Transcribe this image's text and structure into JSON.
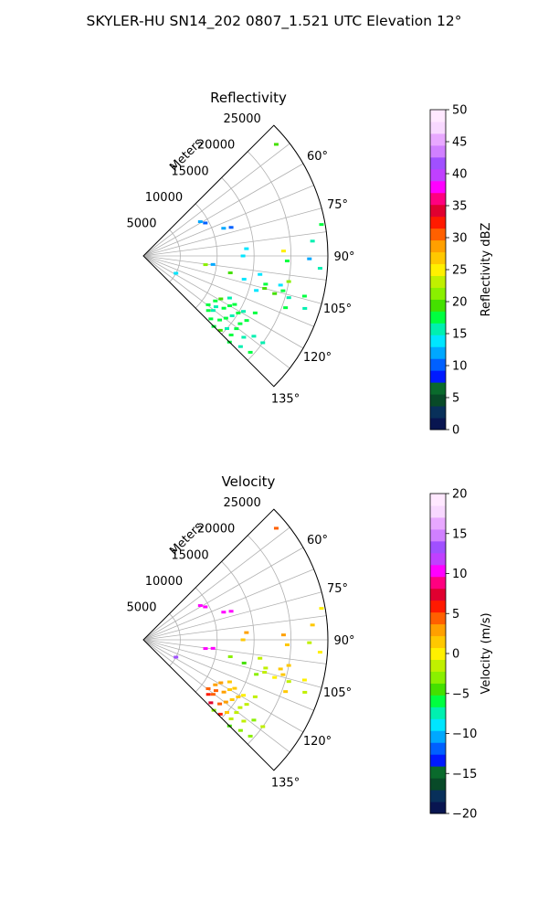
{
  "figure": {
    "title": "SKYLER-HU  SN14_202  0807_1.521 UTC Elevation 12°"
  },
  "chart_data": [
    {
      "type": "polar-scatter",
      "title": "Reflectivity",
      "radial_label": "Meters",
      "radial_ticks": [
        5000,
        10000,
        15000,
        20000,
        25000
      ],
      "radial_tick_labels": [
        "5000",
        "10000",
        "15000",
        "20000",
        "25000"
      ],
      "rlim": [
        0,
        25000
      ],
      "theta_ticks": [
        60,
        75,
        90,
        105,
        120,
        135
      ],
      "theta_tick_labels": [
        "60°",
        "75°",
        "90°",
        "105°",
        "120°",
        "135°"
      ],
      "theta_range": [
        45,
        135
      ],
      "grid": true,
      "colorbar": {
        "label": "Reflectivity dBZ",
        "range": [
          0,
          50
        ],
        "ticks": [
          0,
          5,
          10,
          15,
          20,
          25,
          30,
          35,
          40,
          45,
          50
        ],
        "tick_labels": [
          "0",
          "5",
          "10",
          "15",
          "20",
          "25",
          "30",
          "35",
          "40",
          "45",
          "50"
        ]
      },
      "points": [
        {
          "az": 50,
          "r": 23500,
          "v": 20
        },
        {
          "az": 59,
          "r": 9000,
          "v": 12
        },
        {
          "az": 62,
          "r": 9500,
          "v": 11
        },
        {
          "az": 71,
          "r": 11500,
          "v": 12
        },
        {
          "az": 72,
          "r": 12500,
          "v": 11
        },
        {
          "az": 86,
          "r": 14000,
          "v": 14
        },
        {
          "az": 90,
          "r": 13500,
          "v": 14
        },
        {
          "az": 88,
          "r": 19000,
          "v": 25
        },
        {
          "az": 92,
          "r": 19500,
          "v": 17
        },
        {
          "az": 80,
          "r": 24500,
          "v": 18
        },
        {
          "az": 85,
          "r": 23000,
          "v": 15
        },
        {
          "az": 91,
          "r": 22500,
          "v": 12
        },
        {
          "az": 94,
          "r": 24000,
          "v": 15
        },
        {
          "az": 98,
          "r": 8500,
          "v": 22
        },
        {
          "az": 97,
          "r": 9500,
          "v": 12
        },
        {
          "az": 101,
          "r": 12000,
          "v": 20
        },
        {
          "az": 103,
          "r": 14000,
          "v": 14
        },
        {
          "az": 99,
          "r": 16000,
          "v": 13
        },
        {
          "az": 103,
          "r": 17000,
          "v": 17
        },
        {
          "az": 100,
          "r": 20000,
          "v": 22
        },
        {
          "az": 102,
          "r": 19000,
          "v": 13
        },
        {
          "az": 105,
          "r": 17000,
          "v": 20
        },
        {
          "az": 104,
          "r": 19500,
          "v": 17
        },
        {
          "az": 106,
          "r": 18500,
          "v": 19
        },
        {
          "az": 106,
          "r": 20500,
          "v": 16
        },
        {
          "az": 104,
          "r": 22500,
          "v": 18
        },
        {
          "az": 107,
          "r": 16000,
          "v": 14
        },
        {
          "az": 108,
          "r": 23000,
          "v": 16
        },
        {
          "az": 110,
          "r": 20500,
          "v": 18
        },
        {
          "az": 118,
          "r": 5000,
          "v": 13
        },
        {
          "az": 118,
          "r": 14000,
          "v": 18
        },
        {
          "az": 119,
          "r": 15500,
          "v": 16
        },
        {
          "az": 117,
          "r": 17000,
          "v": 17
        },
        {
          "az": 116,
          "r": 13000,
          "v": 15
        },
        {
          "az": 120,
          "r": 13500,
          "v": 17
        },
        {
          "az": 121,
          "r": 15000,
          "v": 18
        },
        {
          "az": 119,
          "r": 12000,
          "v": 19
        },
        {
          "az": 122,
          "r": 16500,
          "v": 17
        },
        {
          "az": 124,
          "r": 14500,
          "v": 16
        },
        {
          "az": 123,
          "r": 13000,
          "v": 17
        },
        {
          "az": 125,
          "r": 16000,
          "v": 18
        },
        {
          "az": 126,
          "r": 18500,
          "v": 15
        },
        {
          "az": 127,
          "r": 14000,
          "v": 17
        },
        {
          "az": 128,
          "r": 12000,
          "v": 16
        },
        {
          "az": 128,
          "r": 16000,
          "v": 18
        },
        {
          "az": 130,
          "r": 13500,
          "v": 17
        },
        {
          "az": 131,
          "r": 15000,
          "v": 16
        },
        {
          "az": 133,
          "r": 12500,
          "v": 18
        },
        {
          "az": 132,
          "r": 16000,
          "v": 17
        },
        {
          "az": 134,
          "r": 14500,
          "v": 19
        },
        {
          "az": 133,
          "r": 18000,
          "v": 16
        },
        {
          "az": 130,
          "r": 11500,
          "v": 17
        },
        {
          "az": 127,
          "r": 11000,
          "v": 18
        },
        {
          "az": 125,
          "r": 12000,
          "v": 16
        },
        {
          "az": 122,
          "r": 11500,
          "v": 17
        },
        {
          "az": 129,
          "r": 17500,
          "v": 15
        },
        {
          "az": 126,
          "r": 20000,
          "v": 16
        },
        {
          "az": 132,
          "r": 19500,
          "v": 17
        },
        {
          "az": 135,
          "r": 16500,
          "v": 18
        },
        {
          "az": 135,
          "r": 13500,
          "v": 17
        }
      ]
    },
    {
      "type": "polar-scatter",
      "title": "Velocity",
      "radial_label": "Meters",
      "radial_ticks": [
        5000,
        10000,
        15000,
        20000,
        25000
      ],
      "radial_tick_labels": [
        "5000",
        "10000",
        "15000",
        "20000",
        "25000"
      ],
      "rlim": [
        0,
        25000
      ],
      "theta_ticks": [
        60,
        75,
        90,
        105,
        120,
        135
      ],
      "theta_tick_labels": [
        "60°",
        "75°",
        "90°",
        "105°",
        "120°",
        "135°"
      ],
      "theta_range": [
        45,
        135
      ],
      "grid": true,
      "colorbar": {
        "label": "Velocity (m/s)",
        "range": [
          -20,
          20
        ],
        "ticks": [
          -20,
          -15,
          -10,
          -5,
          0,
          5,
          10,
          15,
          20
        ],
        "tick_labels": [
          "−20",
          "−15",
          "−10",
          "−5",
          "0",
          "5",
          "10",
          "15",
          "20"
        ]
      },
      "points": [
        {
          "az": 50,
          "r": 23500,
          "v": 4
        },
        {
          "az": 59,
          "r": 9000,
          "v": 10
        },
        {
          "az": 62,
          "r": 9500,
          "v": 10
        },
        {
          "az": 71,
          "r": 11500,
          "v": 11
        },
        {
          "az": 72,
          "r": 12500,
          "v": 10
        },
        {
          "az": 86,
          "r": 14000,
          "v": 3
        },
        {
          "az": 90,
          "r": 13500,
          "v": 2
        },
        {
          "az": 88,
          "r": 19000,
          "v": 3
        },
        {
          "az": 92,
          "r": 19500,
          "v": 2
        },
        {
          "az": 80,
          "r": 24500,
          "v": 0
        },
        {
          "az": 85,
          "r": 23000,
          "v": 1
        },
        {
          "az": 91,
          "r": 22500,
          "v": -1
        },
        {
          "az": 94,
          "r": 24000,
          "v": 0
        },
        {
          "az": 98,
          "r": 8500,
          "v": 11
        },
        {
          "az": 97,
          "r": 9500,
          "v": 10
        },
        {
          "az": 101,
          "r": 12000,
          "v": -3
        },
        {
          "az": 103,
          "r": 14000,
          "v": -4
        },
        {
          "az": 99,
          "r": 16000,
          "v": -2
        },
        {
          "az": 103,
          "r": 17000,
          "v": -1
        },
        {
          "az": 100,
          "r": 20000,
          "v": 1
        },
        {
          "az": 102,
          "r": 19000,
          "v": 2
        },
        {
          "az": 105,
          "r": 17000,
          "v": -2
        },
        {
          "az": 104,
          "r": 19500,
          "v": 1
        },
        {
          "az": 106,
          "r": 18500,
          "v": 0
        },
        {
          "az": 106,
          "r": 20500,
          "v": -1
        },
        {
          "az": 104,
          "r": 22500,
          "v": 0
        },
        {
          "az": 107,
          "r": 16000,
          "v": -3
        },
        {
          "az": 108,
          "r": 23000,
          "v": -2
        },
        {
          "az": 110,
          "r": 20500,
          "v": 1
        },
        {
          "az": 118,
          "r": 5000,
          "v": 14
        },
        {
          "az": 118,
          "r": 14000,
          "v": 1
        },
        {
          "az": 119,
          "r": 15500,
          "v": 0
        },
        {
          "az": 117,
          "r": 17000,
          "v": -1
        },
        {
          "az": 116,
          "r": 13000,
          "v": 2
        },
        {
          "az": 120,
          "r": 13500,
          "v": 2
        },
        {
          "az": 121,
          "r": 15000,
          "v": 1
        },
        {
          "az": 119,
          "r": 12000,
          "v": 3
        },
        {
          "az": 122,
          "r": 16500,
          "v": -2
        },
        {
          "az": 124,
          "r": 14500,
          "v": 2
        },
        {
          "az": 123,
          "r": 13000,
          "v": 3
        },
        {
          "az": 125,
          "r": 16000,
          "v": -1
        },
        {
          "az": 126,
          "r": 18500,
          "v": -3
        },
        {
          "az": 127,
          "r": 14000,
          "v": 3
        },
        {
          "az": 128,
          "r": 12000,
          "v": 5
        },
        {
          "az": 128,
          "r": 16000,
          "v": -2
        },
        {
          "az": 130,
          "r": 13500,
          "v": 4
        },
        {
          "az": 131,
          "r": 15000,
          "v": 1
        },
        {
          "az": 133,
          "r": 12500,
          "v": 7
        },
        {
          "az": 132,
          "r": 16000,
          "v": -2
        },
        {
          "az": 134,
          "r": 14500,
          "v": 6
        },
        {
          "az": 133,
          "r": 18000,
          "v": -3
        },
        {
          "az": 130,
          "r": 11500,
          "v": 6
        },
        {
          "az": 127,
          "r": 11000,
          "v": 5
        },
        {
          "az": 125,
          "r": 12000,
          "v": 4
        },
        {
          "az": 122,
          "r": 11500,
          "v": 3
        },
        {
          "az": 129,
          "r": 17500,
          "v": -2
        },
        {
          "az": 126,
          "r": 20000,
          "v": -1
        },
        {
          "az": 132,
          "r": 19500,
          "v": -3
        },
        {
          "az": 135,
          "r": 16500,
          "v": -4
        },
        {
          "az": 135,
          "r": 13500,
          "v": -3
        }
      ]
    }
  ]
}
